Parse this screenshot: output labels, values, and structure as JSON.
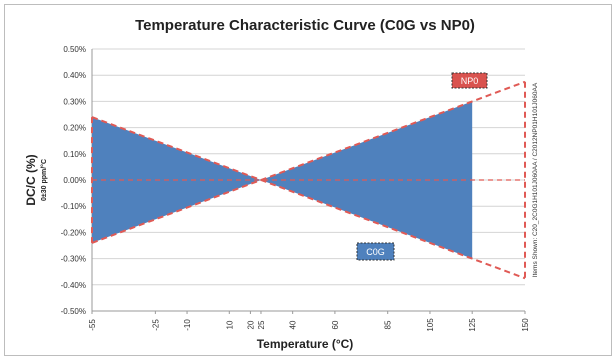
{
  "chart_data": {
    "type": "area",
    "title": "Temperature Characteristic Curve (C0G vs NP0)",
    "xlabel": "Temperature (°C)",
    "ylabel": "DC/C (%)",
    "ylabel_sub": "0±30 ppm/°C",
    "side_note": "Items Shown: C20_2C0G1H101J060AA / C2012NP01H101J060AA",
    "xlim": [
      -55,
      150
    ],
    "ylim": [
      -0.5,
      0.5
    ],
    "x_ticks": [
      -55,
      -25,
      -10,
      10,
      20,
      25,
      40,
      60,
      85,
      105,
      125,
      150
    ],
    "y_ticks": [
      -0.5,
      -0.4,
      -0.3,
      -0.2,
      -0.1,
      0.0,
      0.1,
      0.2,
      0.3,
      0.4,
      0.5
    ],
    "y_tick_labels": [
      "-0.50%",
      "-0.40%",
      "-0.30%",
      "-0.20%",
      "-0.10%",
      "0.00%",
      "0.10%",
      "0.20%",
      "0.30%",
      "0.40%",
      "0.50%"
    ],
    "reference_temp": 25,
    "series": [
      {
        "name": "C0G",
        "kind": "filled-band",
        "color": "#4f81bd",
        "x": [
          -55,
          25,
          125
        ],
        "upper": [
          0.24,
          0.0,
          0.3
        ],
        "lower": [
          -0.24,
          0.0,
          -0.3
        ]
      },
      {
        "name": "NP0",
        "kind": "dashed-envelope",
        "color": "#e05a55",
        "x": [
          -55,
          25,
          150
        ],
        "upper": [
          0.24,
          0.0,
          0.375
        ],
        "lower": [
          -0.24,
          0.0,
          -0.375
        ],
        "center": [
          0,
          0,
          0
        ]
      }
    ],
    "annotations": [
      {
        "text": "NP0",
        "style": "red-box"
      },
      {
        "text": "C0G",
        "style": "blue-box"
      }
    ]
  }
}
